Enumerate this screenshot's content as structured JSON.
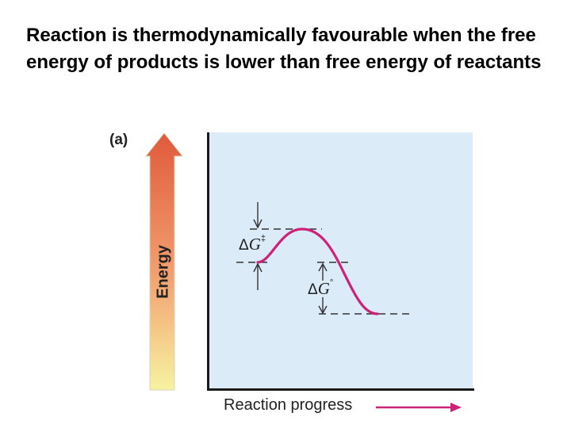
{
  "slide": {
    "text": "Reaction is thermodynamically favourable when the free energy of products is lower than free energy of reactants"
  },
  "diagram": {
    "panel_label": "(a)",
    "y_axis_label": "Energy",
    "x_axis_label": "Reaction progress",
    "activation_label_prefix": "Δ",
    "activation_symbol": "G",
    "activation_superscript": "‡",
    "standard_label_prefix": "Δ",
    "standard_symbol": "G",
    "standard_superscript": "°",
    "colors": {
      "curve": "#cc2277",
      "progress_arrow": "#cc2277",
      "plot_background": "#dcebf8",
      "energy_arrow_top": "#e05a3a",
      "energy_arrow_bottom": "#f7f3a0"
    }
  }
}
